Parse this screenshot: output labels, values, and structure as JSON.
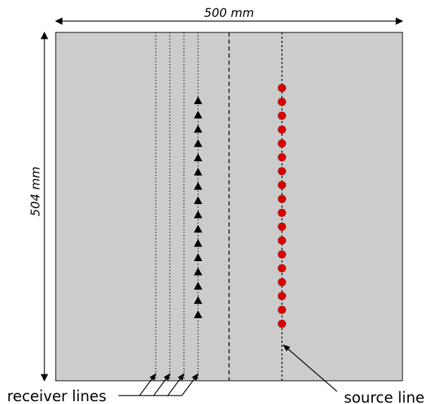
{
  "dimensions": {
    "width_label": "500 mm",
    "height_label": "504 mm"
  },
  "labels": {
    "receiver_lines": "receiver lines",
    "source_line": "source line"
  },
  "colors": {
    "model_fill": "#cccccc",
    "source_marker": "#dd0000",
    "receiver_marker": "#000000",
    "line_color": "#222222"
  },
  "counts": {
    "receivers": 16,
    "sources": 18,
    "receiver_lines": 4
  },
  "icons": {
    "receiver": "triangle-icon",
    "source": "red-circle-icon"
  }
}
